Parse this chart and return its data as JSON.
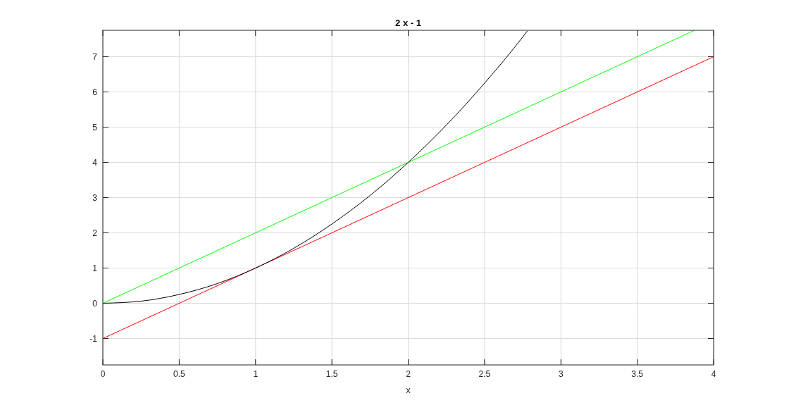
{
  "chart_data": {
    "type": "line",
    "title": "2 x - 1",
    "xlabel": "x",
    "series": [
      {
        "color": "#000000",
        "x": [
          0,
          0.25,
          0.5,
          0.75,
          1,
          1.25,
          1.5,
          1.75,
          2,
          2.25,
          2.5,
          2.75,
          2.78
        ],
        "values": [
          0,
          0.06,
          0.25,
          0.56,
          1,
          1.56,
          2.25,
          3.06,
          4,
          5.06,
          6.25,
          7.56,
          7.73
        ]
      },
      {
        "color": "#00ff00",
        "x": [
          0,
          3.875
        ],
        "values": [
          0,
          7.75
        ]
      },
      {
        "color": "#ff0000",
        "x": [
          0,
          4
        ],
        "values": [
          -1,
          7
        ]
      }
    ],
    "xlim": [
      0,
      4
    ],
    "ylim": [
      -1.75,
      7.75
    ],
    "xticks": [
      0,
      0.5,
      1,
      1.5,
      2,
      2.5,
      3,
      3.5,
      4
    ],
    "yticks": [
      -1,
      0,
      1,
      2,
      3,
      4,
      5,
      6,
      7
    ],
    "grid": true,
    "line_style": "solid",
    "marker": "none"
  }
}
